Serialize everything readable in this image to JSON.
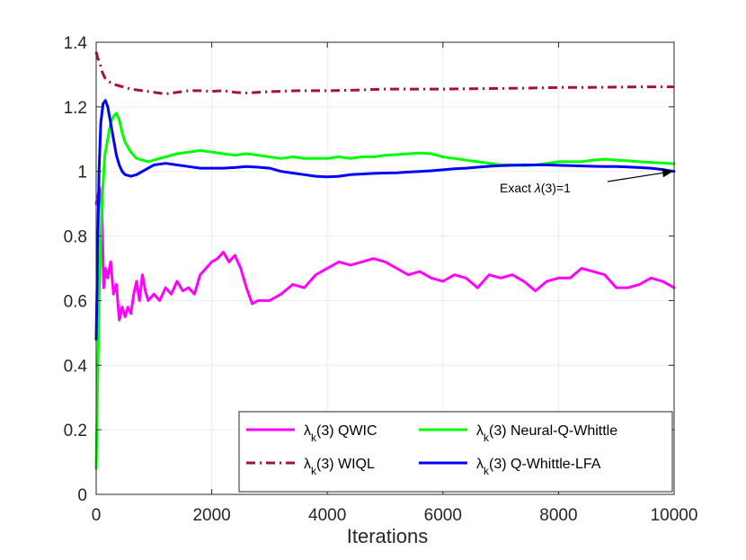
{
  "chart_data": {
    "type": "line",
    "title": "",
    "xlabel": "Iterations",
    "ylabel": "",
    "xlim": [
      0,
      10000
    ],
    "ylim": [
      0,
      1.4
    ],
    "grid": true,
    "legend_position": "bottom-right",
    "xticks": [
      "0",
      "2000",
      "4000",
      "6000",
      "8000",
      "10000"
    ],
    "yticks": [
      "0",
      "0.2",
      "0.4",
      "0.6",
      "0.8",
      "1",
      "1.2",
      "1.4"
    ],
    "series": [
      {
        "name": "QWIC",
        "legend_symbol": "λ",
        "legend_sub": "k",
        "legend_rest": "(3) QWIC",
        "color": "#ff00ff",
        "style": "solid",
        "x": [
          0,
          60,
          100,
          130,
          160,
          200,
          250,
          300,
          350,
          400,
          450,
          500,
          550,
          600,
          650,
          700,
          750,
          800,
          850,
          900,
          1000,
          1100,
          1200,
          1300,
          1400,
          1500,
          1600,
          1700,
          1800,
          1900,
          2000,
          2100,
          2200,
          2300,
          2400,
          2500,
          2600,
          2700,
          2800,
          3000,
          3200,
          3400,
          3600,
          3800,
          4000,
          4200,
          4400,
          4600,
          4800,
          5000,
          5200,
          5400,
          5600,
          5800,
          6000,
          6200,
          6400,
          6600,
          6800,
          7000,
          7200,
          7400,
          7600,
          7800,
          8000,
          8200,
          8400,
          8600,
          8800,
          9000,
          9200,
          9400,
          9600,
          9800,
          10000
        ],
        "y": [
          0.9,
          0.95,
          0.88,
          0.64,
          0.7,
          0.67,
          0.72,
          0.62,
          0.65,
          0.54,
          0.58,
          0.55,
          0.58,
          0.56,
          0.62,
          0.66,
          0.6,
          0.68,
          0.63,
          0.6,
          0.62,
          0.6,
          0.64,
          0.62,
          0.66,
          0.63,
          0.64,
          0.62,
          0.68,
          0.7,
          0.72,
          0.73,
          0.75,
          0.72,
          0.74,
          0.7,
          0.64,
          0.59,
          0.6,
          0.6,
          0.62,
          0.65,
          0.64,
          0.68,
          0.7,
          0.72,
          0.71,
          0.72,
          0.73,
          0.72,
          0.7,
          0.68,
          0.69,
          0.67,
          0.66,
          0.68,
          0.67,
          0.64,
          0.68,
          0.67,
          0.68,
          0.66,
          0.63,
          0.66,
          0.67,
          0.67,
          0.7,
          0.69,
          0.68,
          0.64,
          0.64,
          0.65,
          0.67,
          0.66,
          0.64
        ]
      },
      {
        "name": "WIQL",
        "legend_symbol": "λ",
        "legend_sub": "k",
        "legend_rest": "(3) WIQL",
        "color": "#a2142f",
        "style": "dashdot",
        "x": [
          0,
          30,
          60,
          100,
          150,
          200,
          300,
          400,
          500,
          600,
          800,
          1000,
          1200,
          1400,
          1600,
          1800,
          2000,
          2200,
          2400,
          2600,
          2800,
          3000,
          3500,
          4000,
          4500,
          5000,
          5500,
          6000,
          6500,
          7000,
          7500,
          8000,
          8500,
          9000,
          9500,
          10000
        ],
        "y": [
          1.37,
          1.35,
          1.34,
          1.31,
          1.29,
          1.28,
          1.27,
          1.265,
          1.26,
          1.255,
          1.25,
          1.245,
          1.24,
          1.245,
          1.25,
          1.25,
          1.248,
          1.25,
          1.245,
          1.243,
          1.245,
          1.247,
          1.25,
          1.25,
          1.252,
          1.255,
          1.255,
          1.255,
          1.256,
          1.257,
          1.258,
          1.26,
          1.26,
          1.261,
          1.262,
          1.262
        ]
      },
      {
        "name": "Neural-Q-Whittle",
        "legend_symbol": "λ",
        "legend_sub": "k",
        "legend_rest": "(3) Neural-Q-Whittle",
        "color": "#00ff00",
        "style": "solid",
        "x": [
          0,
          20,
          50,
          100,
          150,
          200,
          250,
          300,
          350,
          400,
          450,
          500,
          600,
          700,
          800,
          900,
          1000,
          1200,
          1400,
          1600,
          1800,
          2000,
          2200,
          2400,
          2600,
          2800,
          3000,
          3200,
          3400,
          3600,
          3800,
          4000,
          4200,
          4400,
          4600,
          4800,
          5000,
          5200,
          5400,
          5600,
          5800,
          6000,
          6200,
          6400,
          6600,
          6800,
          7000,
          7200,
          7400,
          7600,
          7800,
          8000,
          8200,
          8400,
          8600,
          8800,
          9000,
          9200,
          9400,
          9600,
          9800,
          10000
        ],
        "y": [
          0.08,
          0.3,
          0.6,
          0.9,
          1.05,
          1.1,
          1.15,
          1.17,
          1.18,
          1.16,
          1.12,
          1.09,
          1.06,
          1.04,
          1.035,
          1.03,
          1.035,
          1.045,
          1.055,
          1.06,
          1.065,
          1.06,
          1.055,
          1.05,
          1.055,
          1.05,
          1.045,
          1.04,
          1.045,
          1.04,
          1.04,
          1.04,
          1.045,
          1.04,
          1.045,
          1.045,
          1.05,
          1.052,
          1.055,
          1.057,
          1.055,
          1.045,
          1.04,
          1.035,
          1.03,
          1.025,
          1.02,
          1.02,
          1.018,
          1.02,
          1.025,
          1.03,
          1.03,
          1.03,
          1.035,
          1.038,
          1.035,
          1.033,
          1.03,
          1.028,
          1.026,
          1.024
        ]
      },
      {
        "name": "Q-Whittle-LFA",
        "legend_symbol": "λ",
        "legend_sub": "k",
        "legend_rest": "(3) Q-Whittle-LFA",
        "color": "#0000ff",
        "style": "solid",
        "x": [
          0,
          20,
          50,
          80,
          120,
          160,
          200,
          250,
          300,
          350,
          400,
          450,
          500,
          600,
          700,
          800,
          900,
          1000,
          1200,
          1400,
          1600,
          1800,
          2000,
          2200,
          2400,
          2600,
          2800,
          3000,
          3200,
          3400,
          3600,
          3800,
          4000,
          4200,
          4400,
          4600,
          4800,
          5000,
          5200,
          5400,
          5600,
          5800,
          6000,
          6200,
          6400,
          6600,
          6800,
          7000,
          7200,
          7400,
          7600,
          7800,
          8000,
          8200,
          8400,
          8600,
          8800,
          9000,
          9200,
          9400,
          9600,
          9800,
          10000
        ],
        "y": [
          0.48,
          0.7,
          1.0,
          1.15,
          1.21,
          1.22,
          1.2,
          1.15,
          1.1,
          1.05,
          1.02,
          1.0,
          0.99,
          0.985,
          0.99,
          1.0,
          1.01,
          1.02,
          1.025,
          1.02,
          1.015,
          1.01,
          1.01,
          1.01,
          1.012,
          1.015,
          1.013,
          1.01,
          1.0,
          0.995,
          0.99,
          0.985,
          0.983,
          0.985,
          0.99,
          0.992,
          0.994,
          0.995,
          0.996,
          0.998,
          1.0,
          1.002,
          1.005,
          1.008,
          1.01,
          1.013,
          1.016,
          1.018,
          1.019,
          1.02,
          1.02,
          1.02,
          1.019,
          1.018,
          1.017,
          1.016,
          1.015,
          1.015,
          1.014,
          1.012,
          1.01,
          1.006,
          1.0
        ]
      }
    ],
    "annotation": {
      "text_prefix": "Exact ",
      "text_symbol": "λ",
      "text_suffix": "(3)=1",
      "target_x": 10000,
      "target_y": 1.0
    }
  }
}
